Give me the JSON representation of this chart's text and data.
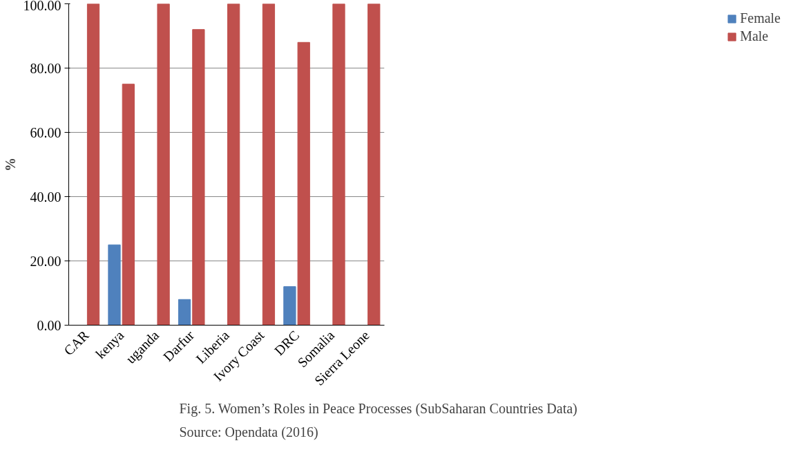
{
  "chart_data": {
    "type": "bar",
    "ylabel": "%",
    "categories": [
      "CAR",
      "kenya",
      "uganda",
      "Darfur",
      "Liberia",
      "Ivory Coast",
      "DRC",
      "Somalia",
      "Sierra Leone"
    ],
    "series": [
      {
        "name": "Female",
        "color": "#4f81bd",
        "values": [
          0,
          25,
          0,
          8,
          0,
          0,
          12,
          0,
          0
        ]
      },
      {
        "name": "Male",
        "color": "#c0504d",
        "values": [
          100,
          75,
          100,
          92,
          100,
          100,
          88,
          100,
          100
        ]
      }
    ],
    "ylim": [
      0,
      100
    ],
    "yticks": [
      {
        "value": 0,
        "label": "0.00"
      },
      {
        "value": 20,
        "label": "20.00"
      },
      {
        "value": 40,
        "label": "40.00"
      },
      {
        "value": 60,
        "label": "60.00"
      },
      {
        "value": 80,
        "label": "80.00"
      },
      {
        "value": 100,
        "label": "100.00"
      }
    ],
    "grid": "y",
    "legend": "right",
    "annotations": [
      "Fig. 5. Women’s Roles in Peace Processes (SubSaharan Countries Data)",
      "Source: Opendata (2016)"
    ]
  }
}
